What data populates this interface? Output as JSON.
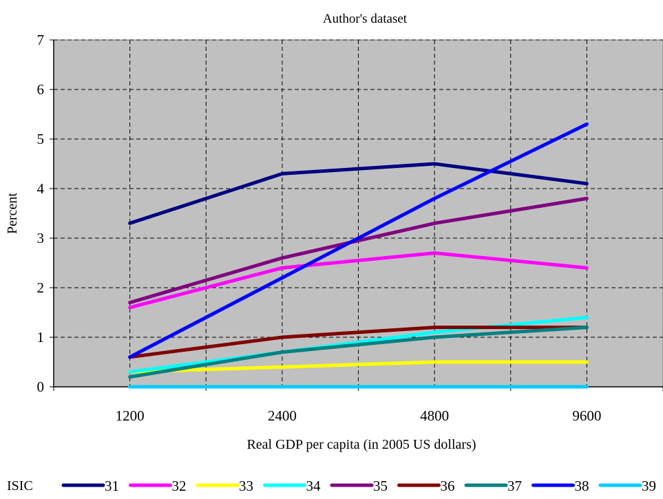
{
  "chart_data": {
    "type": "line",
    "title": "Author's dataset",
    "xlabel": "Real GDP per capita (in 2005 US dollars)",
    "ylabel": "Percent",
    "categories": [
      "1200",
      "2400",
      "4800",
      "9600"
    ],
    "ylim": [
      0,
      7
    ],
    "yticks": [
      0,
      1,
      2,
      3,
      4,
      5,
      6,
      7
    ],
    "grid": true,
    "legend_position": "bottom",
    "legend_title": "ISIC",
    "plot_background": "#c0c0c0",
    "series": [
      {
        "name": "31",
        "color": "#000080",
        "values": [
          3.3,
          4.3,
          4.5,
          4.1
        ]
      },
      {
        "name": "32",
        "color": "#ff00ff",
        "values": [
          1.6,
          2.4,
          2.7,
          2.4
        ]
      },
      {
        "name": "33",
        "color": "#ffff00",
        "values": [
          0.3,
          0.4,
          0.5,
          0.5
        ]
      },
      {
        "name": "34",
        "color": "#00ffff",
        "values": [
          0.3,
          0.7,
          1.1,
          1.4
        ]
      },
      {
        "name": "35",
        "color": "#800080",
        "values": [
          1.7,
          2.6,
          3.3,
          3.8
        ]
      },
      {
        "name": "36",
        "color": "#800000",
        "values": [
          0.6,
          1.0,
          1.2,
          1.2
        ]
      },
      {
        "name": "37",
        "color": "#008080",
        "values": [
          0.2,
          0.7,
          1.0,
          1.2
        ]
      },
      {
        "name": "38",
        "color": "#0000ff",
        "values": [
          0.6,
          2.2,
          3.8,
          5.3
        ]
      },
      {
        "name": "39",
        "color": "#00ccff",
        "values": [
          0.0,
          0.0,
          0.0,
          0.0
        ]
      }
    ]
  }
}
